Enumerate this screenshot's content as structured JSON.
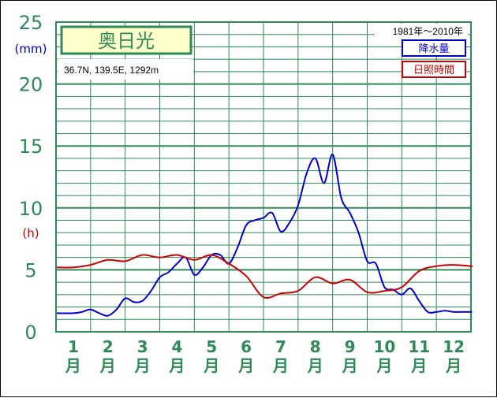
{
  "chart_data": {
    "type": "line",
    "title": "奥日光",
    "location_info": "36.7N,  139.5E,  1292m",
    "period": "1981年〜2010年",
    "ylabel_left": "(mm)",
    "ylabel_right": "(h)",
    "ylim": [
      0,
      25
    ],
    "yticks": [
      "0",
      "5",
      "10",
      "15",
      "20",
      "25"
    ],
    "categories": [
      "1月",
      "2月",
      "3月",
      "4月",
      "5月",
      "6月",
      "7月",
      "8月",
      "9月",
      "10月",
      "11月",
      "12月"
    ],
    "month_numbers": [
      "1",
      "2",
      "3",
      "4",
      "5",
      "6",
      "7",
      "8",
      "9",
      "10",
      "11",
      "12"
    ],
    "month_suffix": "月",
    "legend": {
      "placement": "top-right"
    },
    "colors": {
      "axis": "#2e8b57",
      "grid": "#2e8b57",
      "precip": "#0000cc",
      "sunshine": "#cc0000",
      "title_bg": "#ffffcc"
    },
    "series": [
      {
        "name": "降水量",
        "x": [
          1,
          1.25,
          1.5,
          1.75,
          2,
          2.25,
          2.5,
          2.75,
          3,
          3.25,
          3.5,
          3.75,
          4,
          4.25,
          4.5,
          4.75,
          5,
          5.25,
          5.5,
          5.75,
          6,
          6.25,
          6.5,
          6.75,
          7,
          7.25,
          7.5,
          7.75,
          8,
          8.25,
          8.5,
          8.75,
          9,
          9.25,
          9.5,
          9.75,
          10,
          10.25,
          10.5,
          10.75,
          11,
          11.25,
          11.5,
          11.75,
          12,
          12.25,
          12.5
        ],
        "values": [
          1.5,
          1.6,
          1.8,
          1.5,
          1.3,
          1.8,
          2.7,
          2.4,
          2.5,
          3.3,
          4.4,
          4.8,
          5.5,
          6.0,
          4.6,
          5.2,
          6.2,
          6.2,
          5.5,
          6.8,
          8.6,
          9.0,
          9.2,
          9.6,
          8.1,
          8.8,
          10.2,
          12.8,
          14.0,
          12.0,
          14.3,
          10.8,
          9.6,
          8.0,
          5.7,
          5.5,
          3.6,
          3.4,
          3.0,
          3.5,
          2.5,
          1.6,
          1.6,
          1.7,
          1.6,
          1.6,
          1.6
        ]
      },
      {
        "name": "日照時間",
        "x": [
          1,
          1.5,
          2,
          2.5,
          3,
          3.5,
          4,
          4.5,
          5,
          5.5,
          6,
          6.5,
          7,
          7.5,
          8,
          8.5,
          9,
          9.5,
          10,
          10.5,
          11,
          11.5,
          12,
          12.5
        ],
        "values": [
          5.2,
          5.4,
          5.8,
          5.7,
          6.2,
          6.0,
          6.2,
          5.8,
          6.2,
          5.5,
          4.5,
          2.8,
          3.1,
          3.3,
          4.4,
          3.9,
          4.2,
          3.2,
          3.3,
          3.6,
          4.9,
          5.3,
          5.4,
          5.3
        ]
      }
    ]
  }
}
